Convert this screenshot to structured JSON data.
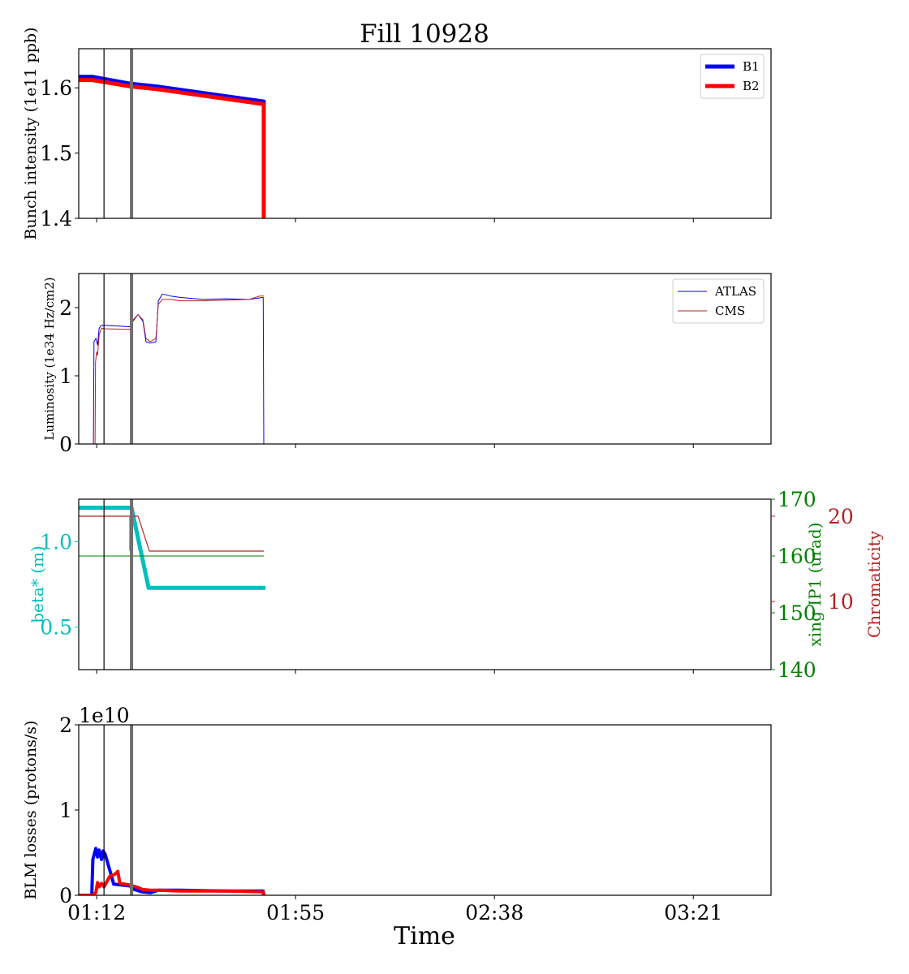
{
  "title": "Fill 10928",
  "xlabel": "Time",
  "xlim": [
    "01:08:07",
    "03:37:48"
  ],
  "xticks": [
    "01:12",
    "01:55",
    "02:38",
    "03:21"
  ],
  "vlines": [
    {
      "x": "01:13:35",
      "color": "#000000",
      "style": "thin"
    },
    {
      "x": "01:19:32",
      "color": "#707070",
      "style": "thick"
    }
  ],
  "chart_data": [
    {
      "type": "line",
      "ylabel": "Bunch intensity (1e11 ppb)",
      "ylim": [
        1.4,
        1.66
      ],
      "yticks": [
        "1.4",
        "1.5",
        "1.6"
      ],
      "legend": "top-right",
      "series": [
        {
          "name": "B1",
          "color": "#0000ff",
          "width": 5,
          "x": [
            "01:08:07",
            "01:11:00",
            "01:19:32",
            "01:25:00",
            "01:48:08",
            "01:48:08"
          ],
          "y": [
            1.617,
            1.617,
            1.606,
            1.602,
            1.579,
            1.4
          ]
        },
        {
          "name": "B2",
          "color": "#ff0000",
          "width": 5,
          "x": [
            "01:08:07",
            "01:11:00",
            "01:19:32",
            "01:25:00",
            "01:48:08",
            "01:48:08"
          ],
          "y": [
            1.612,
            1.612,
            1.602,
            1.598,
            1.575,
            1.4
          ]
        }
      ]
    },
    {
      "type": "line",
      "ylabel": "Luminosity (1e34 Hz/cm2)",
      "ylim": [
        0,
        2.5
      ],
      "yticks": [
        "0",
        "1",
        "2"
      ],
      "legend": "top-right",
      "series": [
        {
          "name": "ATLAS",
          "color": "#0000ff",
          "width": 1,
          "x": [
            "01:08:07",
            "01:11:18",
            "01:11:25",
            "01:11:50",
            "01:12:11",
            "01:12:32",
            "01:13:03",
            "01:13:35",
            "01:19:11",
            "01:19:40",
            "01:20:57",
            "01:22:00",
            "01:22:40",
            "01:23:35",
            "01:24:48",
            "01:25:20",
            "01:26:12",
            "01:28:00",
            "01:30:00",
            "01:35:00",
            "01:40:00",
            "01:45:00",
            "01:48:00",
            "01:48:08"
          ],
          "y": [
            0,
            0,
            1.5,
            1.55,
            1.45,
            1.7,
            1.74,
            1.74,
            1.72,
            1.8,
            1.9,
            1.8,
            1.5,
            1.48,
            1.5,
            2.1,
            2.2,
            2.17,
            2.15,
            2.12,
            2.13,
            2.12,
            2.15,
            0
          ]
        },
        {
          "name": "CMS",
          "color": "#b22222",
          "width": 1,
          "x": [
            "01:08:07",
            "01:11:39",
            "01:11:45",
            "01:12:00",
            "01:12:11",
            "01:12:32",
            "01:13:03",
            "01:13:35",
            "01:19:11",
            "01:19:40",
            "01:20:57",
            "01:22:00",
            "01:22:40",
            "01:23:35",
            "01:24:48",
            "01:25:20",
            "01:26:12",
            "01:28:00",
            "01:30:00",
            "01:35:00",
            "01:40:00",
            "01:45:00",
            "01:47:16",
            "01:48:08"
          ],
          "y": [
            0,
            0,
            1.2,
            1.35,
            1.3,
            1.6,
            1.7,
            1.69,
            1.68,
            1.78,
            1.9,
            1.82,
            1.55,
            1.5,
            1.55,
            2.05,
            2.12,
            2.12,
            2.1,
            2.1,
            2.11,
            2.12,
            2.17,
            2.17
          ]
        }
      ]
    },
    {
      "type": "line",
      "ylabel": "beta* (m)",
      "ylabel_color": "#00bfbf",
      "ylim": [
        0.25,
        1.25
      ],
      "yticks": [
        "0.5",
        "1.0"
      ],
      "right_axes": [
        {
          "label": "xing IP1 (urad)",
          "color": "#008000",
          "ylim": [
            140,
            170
          ],
          "yticks": [
            "140",
            "150",
            "160",
            "170"
          ]
        },
        {
          "label": "Chromaticity",
          "color": "#b22222",
          "ylim": [
            2,
            22
          ],
          "yticks": [
            "10",
            "20"
          ]
        }
      ],
      "series": [
        {
          "axis": "left",
          "color": "#00bfbf",
          "width": 5,
          "x": [
            "01:08:07",
            "01:19:32",
            "01:23:14",
            "01:48:30"
          ],
          "y": [
            1.2,
            1.2,
            0.73,
            0.73
          ]
        },
        {
          "axis": "right1",
          "color": "#008000",
          "width": 1,
          "x": [
            "01:08:07",
            "01:48:08"
          ],
          "y": [
            160,
            160
          ]
        },
        {
          "axis": "right2",
          "color": "#b22222",
          "width": 1.2,
          "x": [
            "01:08:07",
            "01:19:11",
            "01:19:11",
            "01:19:15",
            "01:19:15",
            "01:20:57",
            "01:23:24",
            "01:48:08"
          ],
          "y": [
            20,
            20,
            16,
            16,
            20,
            20,
            15.9,
            15.9
          ]
        }
      ]
    },
    {
      "type": "line",
      "ylabel": "BLM losses (protons/s)",
      "offset_text": "1e10",
      "ylim": [
        0,
        2
      ],
      "yticks": [
        "0",
        "1",
        "2"
      ],
      "series": [
        {
          "color": "#0000ff",
          "width": 4,
          "x": [
            "01:08:07",
            "01:10:57",
            "01:11:10",
            "01:11:49",
            "01:12:11",
            "01:12:32",
            "01:13:03",
            "01:13:24",
            "01:13:50",
            "01:14:48",
            "01:15:41",
            "01:19:11",
            "01:20:04",
            "01:21:49",
            "01:23:35",
            "01:24:48",
            "01:25:20",
            "01:30:00",
            "01:40:00",
            "01:48:00",
            "01:48:08"
          ],
          "y": [
            0,
            0,
            0.42,
            0.55,
            0.45,
            0.53,
            0.42,
            0.52,
            0.48,
            0.3,
            0.13,
            0.11,
            0.07,
            0.04,
            0.03,
            0.05,
            0.06,
            0.06,
            0.05,
            0.05,
            0
          ]
        },
        {
          "color": "#ff0000",
          "width": 4,
          "x": [
            "01:08:07",
            "01:10:57",
            "01:11:49",
            "01:12:11",
            "01:12:32",
            "01:13:03",
            "01:13:35",
            "01:14:48",
            "01:16:00",
            "01:16:34",
            "01:17:00",
            "01:19:11",
            "01:20:57",
            "01:21:49",
            "01:23:35",
            "01:25:20",
            "01:30:00",
            "01:40:00",
            "01:48:00",
            "01:48:08"
          ],
          "y": [
            0,
            0,
            0.03,
            0.15,
            0.1,
            0.14,
            0.1,
            0.22,
            0.25,
            0.28,
            0.14,
            0.12,
            0.09,
            0.07,
            0.06,
            0.06,
            0.05,
            0.05,
            0.04,
            0
          ]
        }
      ]
    }
  ]
}
